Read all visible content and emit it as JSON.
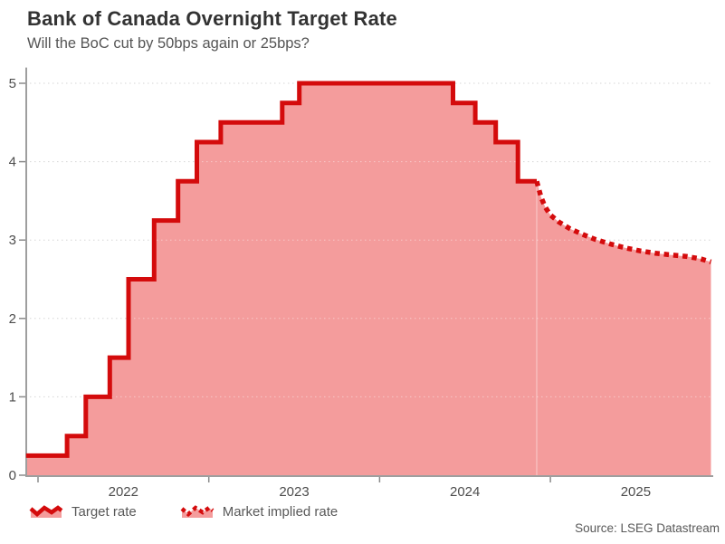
{
  "header": {
    "title": "Bank of Canada Overnight Target Rate",
    "subtitle": "Will the BoC cut by 50bps again or 25bps?"
  },
  "legend": {
    "items": [
      {
        "label": "Target rate",
        "style": "solid"
      },
      {
        "label": "Market implied rate",
        "style": "dotted"
      }
    ]
  },
  "source": "Source: LSEG Datastream",
  "chart_data": {
    "type": "line",
    "subtype": "step-area-with-forecast",
    "title": "Bank of Canada Overnight Target Rate",
    "subtitle": "Will the BoC cut by 50bps again or 25bps?",
    "xlabel": "",
    "ylabel": "",
    "xlim": [
      2021.93,
      2025.94
    ],
    "ylim": [
      0,
      5.2
    ],
    "x_ticks": [
      2022,
      2023,
      2024,
      2025
    ],
    "x_tick_labels": [
      "2022",
      "2023",
      "2024",
      "2025"
    ],
    "y_ticks": [
      0,
      1,
      2,
      3,
      4,
      5
    ],
    "y_tick_labels": [
      "0",
      "1",
      "2",
      "3",
      "4",
      "5"
    ],
    "grid": "horizontal-dotted",
    "legend_position": "bottom-left",
    "series": [
      {
        "name": "Target rate",
        "type": "step",
        "line_style": "solid",
        "points": [
          [
            2021.93,
            0.25
          ],
          [
            2022.17,
            0.5
          ],
          [
            2022.28,
            1.0
          ],
          [
            2022.42,
            1.5
          ],
          [
            2022.53,
            2.5
          ],
          [
            2022.68,
            3.25
          ],
          [
            2022.82,
            3.75
          ],
          [
            2022.93,
            4.25
          ],
          [
            2023.07,
            4.5
          ],
          [
            2023.43,
            4.75
          ],
          [
            2023.53,
            5.0
          ],
          [
            2024.43,
            4.75
          ],
          [
            2024.56,
            4.5
          ],
          [
            2024.68,
            4.25
          ],
          [
            2024.81,
            3.75
          ]
        ],
        "end_x": 2024.92
      },
      {
        "name": "Market implied rate",
        "type": "line",
        "line_style": "dotted",
        "points": [
          [
            2024.92,
            3.75
          ],
          [
            2024.945,
            3.55
          ],
          [
            2024.97,
            3.42
          ],
          [
            2025.0,
            3.32
          ],
          [
            2025.05,
            3.23
          ],
          [
            2025.11,
            3.15
          ],
          [
            2025.18,
            3.08
          ],
          [
            2025.26,
            3.01
          ],
          [
            2025.35,
            2.95
          ],
          [
            2025.44,
            2.9
          ],
          [
            2025.53,
            2.86
          ],
          [
            2025.62,
            2.83
          ],
          [
            2025.71,
            2.81
          ],
          [
            2025.8,
            2.79
          ],
          [
            2025.88,
            2.76
          ],
          [
            2025.94,
            2.72
          ]
        ]
      }
    ],
    "colors": {
      "line": "#d40b0c",
      "fill": "#f49c9c",
      "axis": "#9e9e9e",
      "tick": "#8a8a8a",
      "tick_label": "#4d4d4d",
      "grid": "#d6d6d6",
      "title": "#333333",
      "subtitle": "#555555"
    }
  }
}
